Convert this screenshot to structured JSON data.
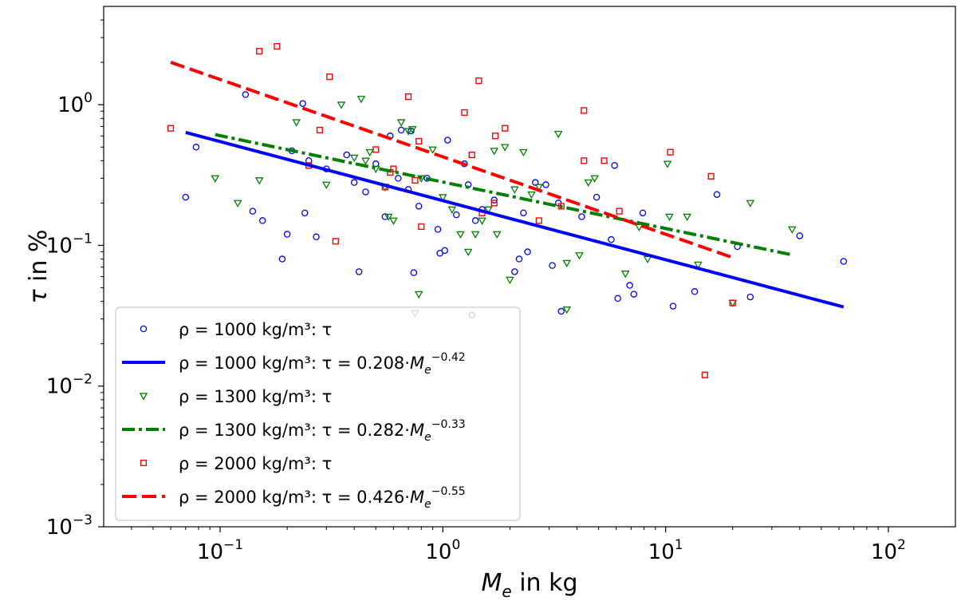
{
  "chart_data": {
    "type": "scatter",
    "xscale": "log",
    "yscale": "log",
    "xlim": [
      0.03,
      200
    ],
    "ylim": [
      0.001,
      5
    ],
    "xlabel": "M_e in kg",
    "ylabel": "τ in %",
    "x_ticks": [
      {
        "value": 0.1,
        "base": "10",
        "exp": "−1"
      },
      {
        "value": 1,
        "base": "10",
        "exp": "0"
      },
      {
        "value": 10,
        "base": "10",
        "exp": "1"
      },
      {
        "value": 100,
        "base": "10",
        "exp": "2"
      }
    ],
    "y_ticks": [
      {
        "value": 0.001,
        "base": "10",
        "exp": "−3"
      },
      {
        "value": 0.01,
        "base": "10",
        "exp": "−2"
      },
      {
        "value": 0.1,
        "base": "10",
        "exp": "−1"
      },
      {
        "value": 1,
        "base": "10",
        "exp": "0"
      }
    ],
    "legend_position": "lower-left",
    "series": [
      {
        "name": "ρ = 1000 kg/m³: τ",
        "kind": "points",
        "marker": "circle",
        "color": "#0000ff",
        "legend": "ρ = 1000 kg/m³: τ",
        "points": [
          [
            0.07,
            0.22
          ],
          [
            0.078,
            0.5
          ],
          [
            0.13,
            1.18
          ],
          [
            0.14,
            0.175
          ],
          [
            0.155,
            0.15
          ],
          [
            0.19,
            0.08
          ],
          [
            0.2,
            0.12
          ],
          [
            0.21,
            0.47
          ],
          [
            0.235,
            1.02
          ],
          [
            0.24,
            0.17
          ],
          [
            0.25,
            0.4
          ],
          [
            0.27,
            0.115
          ],
          [
            0.3,
            0.35
          ],
          [
            0.37,
            0.44
          ],
          [
            0.4,
            0.28
          ],
          [
            0.42,
            0.065
          ],
          [
            0.45,
            0.24
          ],
          [
            0.5,
            0.38
          ],
          [
            0.55,
            0.16
          ],
          [
            0.58,
            0.6
          ],
          [
            0.63,
            0.3
          ],
          [
            0.65,
            0.66
          ],
          [
            0.7,
            0.25
          ],
          [
            0.72,
            0.65
          ],
          [
            0.74,
            0.064
          ],
          [
            0.78,
            0.19
          ],
          [
            0.85,
            0.3
          ],
          [
            0.95,
            0.13
          ],
          [
            0.97,
            0.088
          ],
          [
            1.02,
            0.092
          ],
          [
            1.05,
            0.56
          ],
          [
            1.15,
            0.165
          ],
          [
            1.25,
            0.38
          ],
          [
            1.3,
            0.27
          ],
          [
            1.35,
            0.032
          ],
          [
            1.4,
            0.15
          ],
          [
            1.5,
            0.18
          ],
          [
            1.7,
            0.21
          ],
          [
            2.1,
            0.065
          ],
          [
            2.2,
            0.08
          ],
          [
            2.3,
            0.17
          ],
          [
            2.4,
            0.09
          ],
          [
            2.6,
            0.28
          ],
          [
            2.9,
            0.27
          ],
          [
            3.1,
            0.072
          ],
          [
            3.3,
            0.2
          ],
          [
            3.4,
            0.034
          ],
          [
            4.2,
            0.16
          ],
          [
            4.9,
            0.22
          ],
          [
            5.7,
            0.11
          ],
          [
            5.9,
            0.37
          ],
          [
            6.1,
            0.042
          ],
          [
            6.9,
            0.052
          ],
          [
            7.2,
            0.045
          ],
          [
            7.9,
            0.17
          ],
          [
            10.8,
            0.037
          ],
          [
            13.5,
            0.047
          ],
          [
            17,
            0.23
          ],
          [
            21,
            0.098
          ],
          [
            24,
            0.043
          ],
          [
            40,
            0.117
          ],
          [
            63,
            0.077
          ]
        ]
      },
      {
        "name": "ρ = 1000 kg/m³: τ = 0.208·M_e^−0.42",
        "kind": "fit",
        "dash": "solid",
        "color": "#0000ff",
        "legend": "ρ = 1000 kg/m³: τ = 0.208·",
        "legend_exp": "−0.42",
        "coef": 0.208,
        "exponent": -0.42,
        "x_range": [
          0.07,
          63
        ]
      },
      {
        "name": "ρ = 1300 kg/m³: τ",
        "kind": "points",
        "marker": "triangle-down",
        "color": "#007f00",
        "legend": "ρ = 1300 kg/m³: τ",
        "points": [
          [
            0.095,
            0.3
          ],
          [
            0.12,
            0.2
          ],
          [
            0.15,
            0.29
          ],
          [
            0.22,
            0.75
          ],
          [
            0.3,
            0.27
          ],
          [
            0.35,
            1.0
          ],
          [
            0.4,
            0.42
          ],
          [
            0.43,
            1.1
          ],
          [
            0.45,
            0.4
          ],
          [
            0.47,
            0.46
          ],
          [
            0.5,
            0.35
          ],
          [
            0.55,
            0.26
          ],
          [
            0.57,
            0.16
          ],
          [
            0.6,
            0.15
          ],
          [
            0.65,
            0.75
          ],
          [
            0.7,
            0.65
          ],
          [
            0.73,
            0.67
          ],
          [
            0.75,
            0.033
          ],
          [
            0.78,
            0.045
          ],
          [
            0.8,
            0.3
          ],
          [
            0.9,
            0.48
          ],
          [
            1.0,
            0.22
          ],
          [
            1.1,
            0.18
          ],
          [
            1.2,
            0.12
          ],
          [
            1.3,
            0.09
          ],
          [
            1.4,
            0.12
          ],
          [
            1.5,
            0.15
          ],
          [
            1.6,
            0.18
          ],
          [
            1.7,
            0.47
          ],
          [
            1.75,
            0.12
          ],
          [
            1.9,
            0.5
          ],
          [
            2.0,
            0.057
          ],
          [
            2.1,
            0.25
          ],
          [
            2.3,
            0.46
          ],
          [
            2.5,
            0.23
          ],
          [
            2.7,
            0.26
          ],
          [
            3.3,
            0.62
          ],
          [
            3.6,
            0.075
          ],
          [
            3.6,
            0.035
          ],
          [
            4.1,
            0.085
          ],
          [
            4.5,
            0.28
          ],
          [
            4.8,
            0.3
          ],
          [
            6.6,
            0.063
          ],
          [
            7.6,
            0.135
          ],
          [
            8.3,
            0.08
          ],
          [
            10.2,
            0.38
          ],
          [
            10.4,
            0.16
          ],
          [
            12.5,
            0.16
          ],
          [
            14,
            0.073
          ],
          [
            20,
            0.039
          ],
          [
            24,
            0.2
          ],
          [
            37,
            0.13
          ]
        ]
      },
      {
        "name": "ρ = 1300 kg/m³: τ = 0.282·M_e^−0.33",
        "kind": "fit",
        "dash": "dashdot",
        "color": "#007f00",
        "legend": "ρ = 1300 kg/m³: τ = 0.282·",
        "legend_exp": "−0.33",
        "coef": 0.282,
        "exponent": -0.33,
        "x_range": [
          0.095,
          37
        ]
      },
      {
        "name": "ρ = 2000 kg/m³: τ",
        "kind": "points",
        "marker": "square",
        "color": "#ff0000",
        "legend": "ρ = 2000 kg/m³: τ",
        "points": [
          [
            0.06,
            0.68
          ],
          [
            0.15,
            2.4
          ],
          [
            0.18,
            2.6
          ],
          [
            0.25,
            0.37
          ],
          [
            0.28,
            0.66
          ],
          [
            0.31,
            1.58
          ],
          [
            0.33,
            0.107
          ],
          [
            0.5,
            0.48
          ],
          [
            0.55,
            0.26
          ],
          [
            0.58,
            0.33
          ],
          [
            0.6,
            0.35
          ],
          [
            0.7,
            1.14
          ],
          [
            0.75,
            0.29
          ],
          [
            0.78,
            0.55
          ],
          [
            0.8,
            0.136
          ],
          [
            1.25,
            0.88
          ],
          [
            1.35,
            0.44
          ],
          [
            1.45,
            1.48
          ],
          [
            1.5,
            0.17
          ],
          [
            1.7,
            0.2
          ],
          [
            1.72,
            0.6
          ],
          [
            1.9,
            0.68
          ],
          [
            2.7,
            0.15
          ],
          [
            3.4,
            0.19
          ],
          [
            4.3,
            0.91
          ],
          [
            4.3,
            0.4
          ],
          [
            5.3,
            0.4
          ],
          [
            6.2,
            0.175
          ],
          [
            10.5,
            0.46
          ],
          [
            15,
            0.012
          ],
          [
            16,
            0.31
          ],
          [
            20,
            0.039
          ]
        ]
      },
      {
        "name": "ρ = 2000 kg/m³: τ = 0.426·M_e^−0.55",
        "kind": "fit",
        "dash": "dashed",
        "color": "#ff0000",
        "legend": "ρ = 2000 kg/m³: τ = 0.426·",
        "legend_exp": "−0.55",
        "coef": 0.426,
        "exponent": -0.55,
        "x_range": [
          0.06,
          20
        ]
      }
    ]
  }
}
